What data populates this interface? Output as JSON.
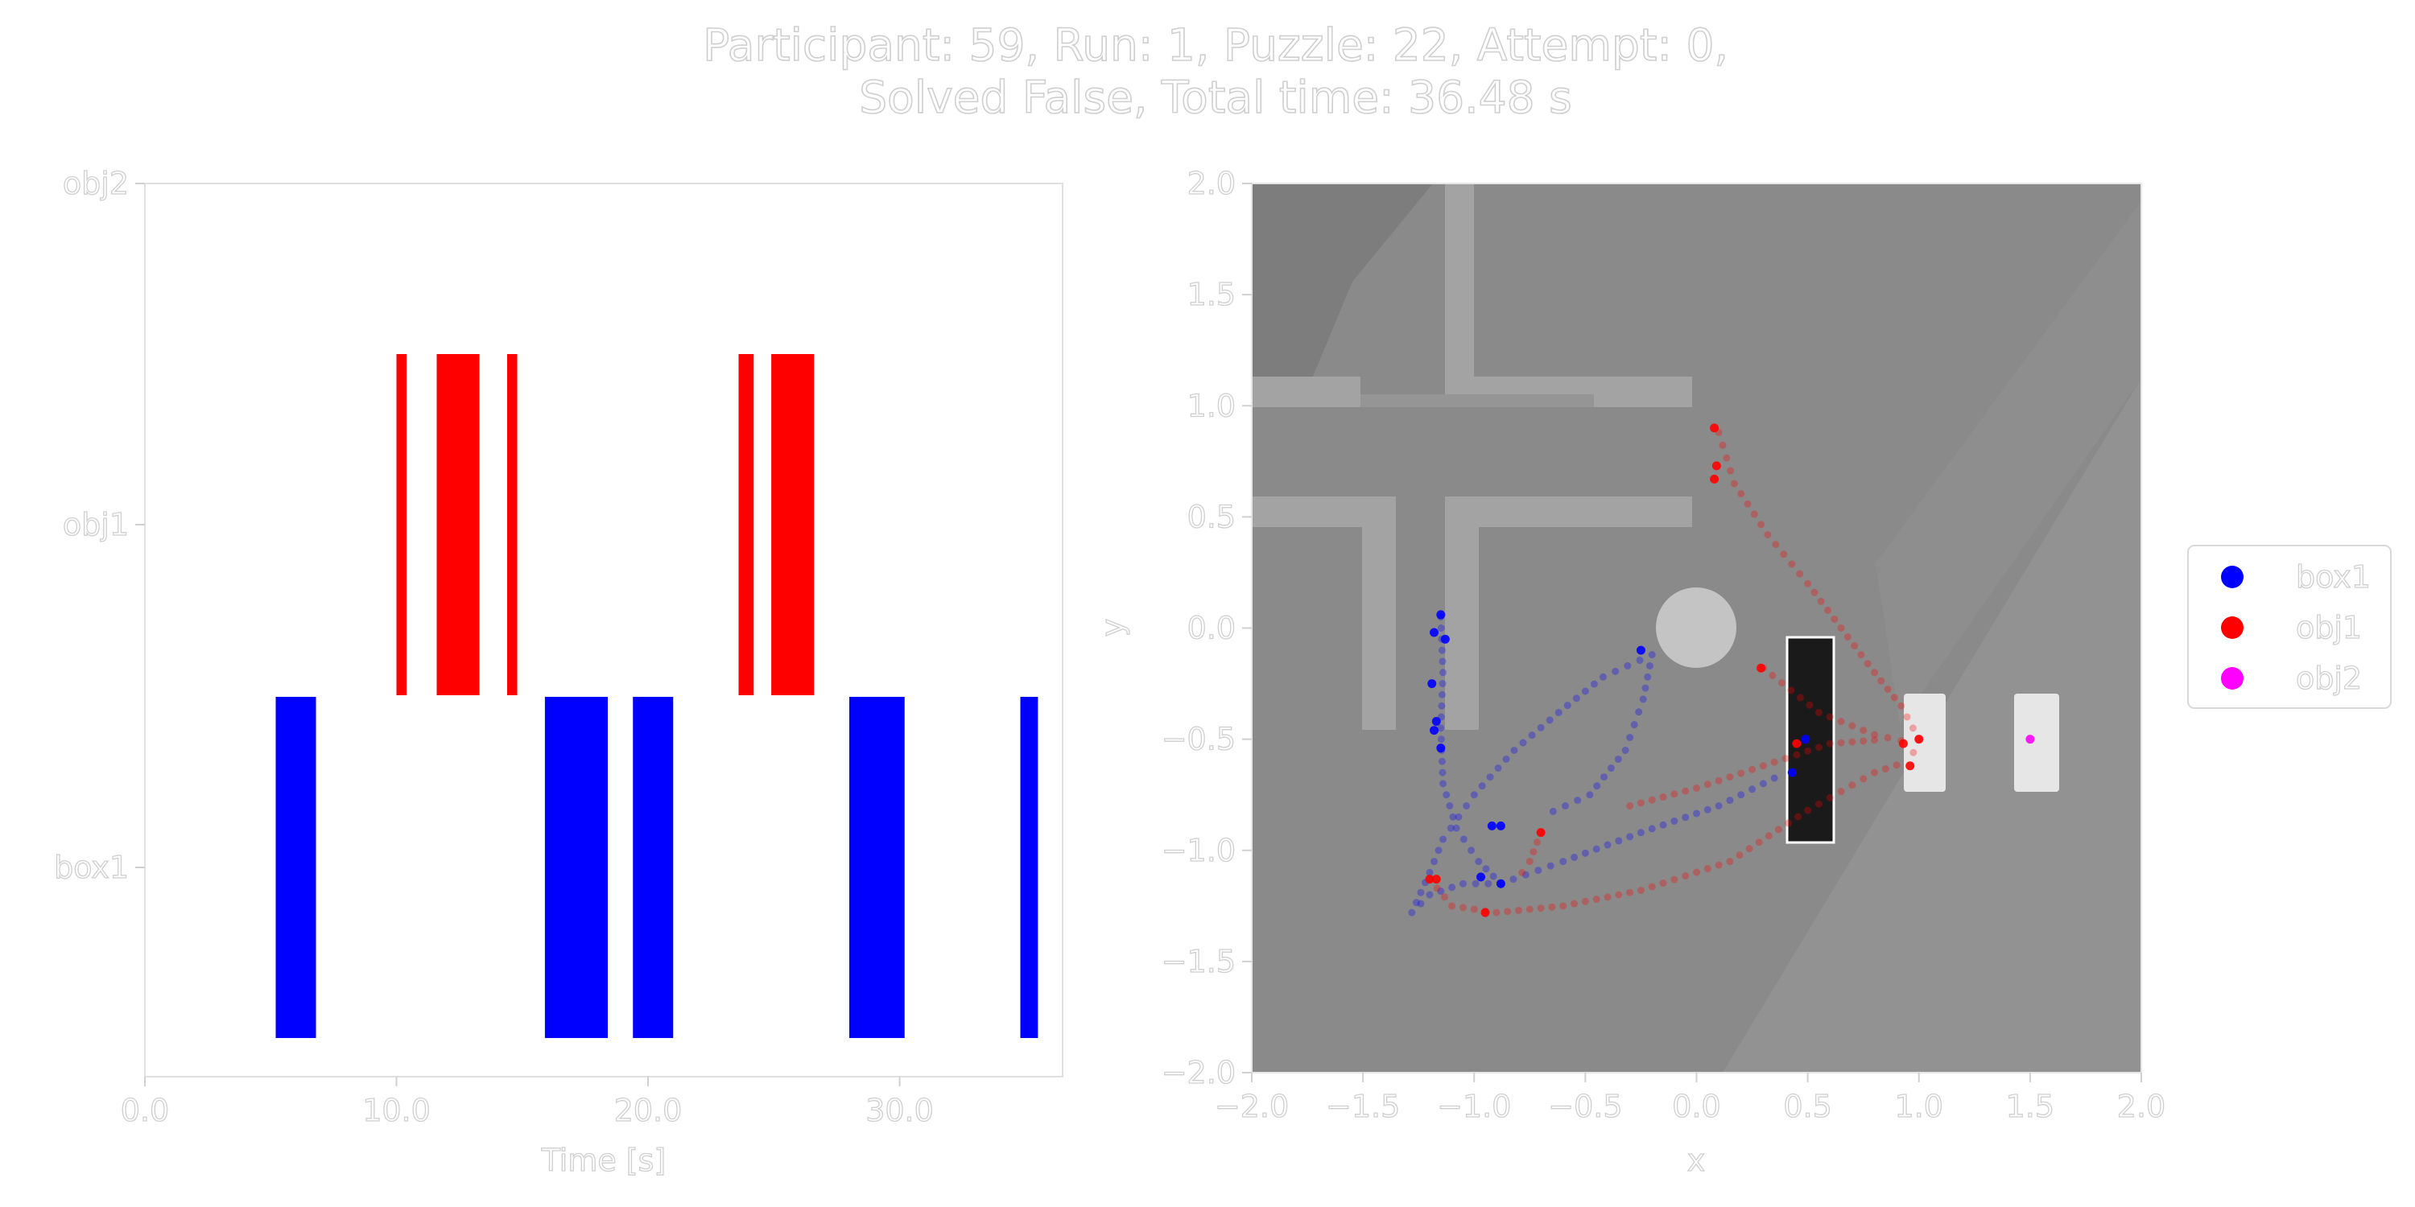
{
  "title_lines": [
    "Participant: 59, Run: 1, Puzzle: 22, Attempt: 0,",
    "Solved  False, Total time: 36.48 s"
  ],
  "chart_data": [
    {
      "type": "bar",
      "subtype": "timeline",
      "xlabel": "Time [s]",
      "ylabel": "",
      "xlim": [
        0,
        36.48
      ],
      "xticks": [
        "0.0",
        "10.0",
        "20.0",
        "30.0"
      ],
      "xtick_values": [
        0,
        10,
        20,
        30
      ],
      "categories": [
        "box1",
        "obj1",
        "obj2"
      ],
      "grid": false,
      "series": [
        {
          "name": "box1",
          "color": "#0000ff",
          "intervals": [
            [
              5.2,
              6.8
            ],
            [
              15.9,
              18.4
            ],
            [
              19.4,
              21.0
            ],
            [
              28.0,
              30.2
            ],
            [
              34.8,
              35.5
            ]
          ]
        },
        {
          "name": "obj1",
          "color": "#ff0000",
          "intervals": [
            [
              10.0,
              10.4
            ],
            [
              11.6,
              13.3
            ],
            [
              14.4,
              14.8
            ],
            [
              23.6,
              24.2
            ],
            [
              24.9,
              26.6
            ]
          ]
        },
        {
          "name": "obj2",
          "color": "#ff00ff",
          "intervals": []
        }
      ]
    },
    {
      "type": "scatter",
      "xlabel": "x",
      "ylabel": "y",
      "xlim": [
        -2.0,
        2.0
      ],
      "ylim": [
        -2.0,
        2.0
      ],
      "xticks": [
        "−2.0",
        "−1.5",
        "−1.0",
        "−0.5",
        "0.0",
        "0.5",
        "1.0",
        "1.5",
        "2.0"
      ],
      "yticks": [
        "2.0",
        "1.5",
        "1.0",
        "0.5",
        "0.0",
        "−0.5",
        "−1.0",
        "−1.5",
        "−2.0"
      ],
      "tick_values": [
        -2.0,
        -1.5,
        -1.0,
        -0.5,
        0.0,
        0.5,
        1.0,
        1.5,
        2.0
      ],
      "legend_position": "right",
      "grid": false,
      "background_image": "rendered-puzzle-scene",
      "colors": {
        "floor": "#8a8a8a",
        "wall": "#9a9a9a",
        "shelf": "#1a1a1a",
        "target": "#e6e6e6"
      },
      "series": [
        {
          "name": "box1",
          "color": "#0000ff",
          "traces": [
            [
              [
                -1.15,
                0.05
              ],
              [
                -1.14,
                -0.2
              ],
              [
                -1.15,
                -0.45
              ],
              [
                -1.14,
                -0.7
              ],
              [
                -1.08,
                -0.9
              ],
              [
                -0.98,
                -1.05
              ],
              [
                -0.88,
                -1.15
              ]
            ],
            [
              [
                -0.88,
                -1.15
              ],
              [
                -1.05,
                -1.15
              ],
              [
                -1.2,
                -1.2
              ],
              [
                -1.28,
                -1.28
              ],
              [
                -1.2,
                -1.1
              ],
              [
                -1.14,
                -0.95
              ],
              [
                -1.0,
                -0.75
              ],
              [
                -0.82,
                -0.55
              ],
              [
                -0.62,
                -0.38
              ],
              [
                -0.42,
                -0.22
              ],
              [
                -0.2,
                -0.12
              ]
            ],
            [
              [
                -0.2,
                -0.12
              ],
              [
                -0.24,
                -0.32
              ],
              [
                -0.32,
                -0.55
              ],
              [
                -0.48,
                -0.75
              ],
              [
                -0.7,
                -0.85
              ]
            ],
            [
              [
                -0.88,
                -1.15
              ],
              [
                -0.6,
                -1.05
              ],
              [
                -0.25,
                -0.92
              ],
              [
                0.1,
                -0.8
              ],
              [
                0.4,
                -0.65
              ]
            ]
          ],
          "points": [
            [
              -1.15,
              0.06
            ],
            [
              -1.18,
              -0.02
            ],
            [
              -1.13,
              -0.05
            ],
            [
              -1.19,
              -0.25
            ],
            [
              -1.17,
              -0.42
            ],
            [
              -1.18,
              -0.46
            ],
            [
              -1.15,
              -0.54
            ],
            [
              -0.92,
              -0.89
            ],
            [
              -0.88,
              -0.89
            ],
            [
              -0.88,
              -1.15
            ],
            [
              -0.97,
              -1.12
            ],
            [
              -0.25,
              -0.1
            ],
            [
              0.49,
              -0.5
            ],
            [
              0.43,
              -0.65
            ]
          ]
        },
        {
          "name": "obj1",
          "color": "#ff0000",
          "traces": [
            [
              [
                0.1,
                0.88
              ],
              [
                0.17,
                0.65
              ],
              [
                0.32,
                0.42
              ],
              [
                0.5,
                0.2
              ],
              [
                0.65,
                0.0
              ],
              [
                0.8,
                -0.2
              ],
              [
                0.92,
                -0.35
              ],
              [
                1.0,
                -0.5
              ],
              [
                0.95,
                -0.62
              ]
            ],
            [
              [
                0.3,
                -0.18
              ],
              [
                0.55,
                -0.38
              ],
              [
                0.8,
                -0.48
              ],
              [
                0.98,
                -0.52
              ]
            ],
            [
              [
                -1.2,
                -1.13
              ],
              [
                -1.1,
                -1.25
              ],
              [
                -0.9,
                -1.28
              ],
              [
                -0.6,
                -1.25
              ],
              [
                -0.25,
                -1.18
              ],
              [
                0.15,
                -1.05
              ],
              [
                0.5,
                -0.82
              ],
              [
                0.8,
                -0.65
              ],
              [
                0.95,
                -0.6
              ]
            ],
            [
              [
                -0.3,
                -0.8
              ],
              [
                0.0,
                -0.72
              ],
              [
                0.3,
                -0.62
              ],
              [
                0.6,
                -0.52
              ],
              [
                0.85,
                -0.5
              ]
            ],
            [
              [
                -0.7,
                -0.92
              ],
              [
                -0.75,
                -1.05
              ],
              [
                -0.82,
                -1.15
              ]
            ]
          ],
          "points": [
            [
              0.08,
              0.9
            ],
            [
              0.09,
              0.73
            ],
            [
              0.08,
              0.67
            ],
            [
              0.29,
              -0.18
            ],
            [
              -0.7,
              -0.92
            ],
            [
              -1.2,
              -1.13
            ],
            [
              -1.17,
              -1.13
            ],
            [
              -0.95,
              -1.28
            ],
            [
              0.45,
              -0.52
            ],
            [
              0.93,
              -0.52
            ],
            [
              1.0,
              -0.5
            ],
            [
              0.96,
              -0.62
            ]
          ]
        },
        {
          "name": "obj2",
          "color": "#ff00ff",
          "traces": [],
          "points": [
            [
              1.5,
              -0.5
            ]
          ]
        }
      ]
    }
  ]
}
